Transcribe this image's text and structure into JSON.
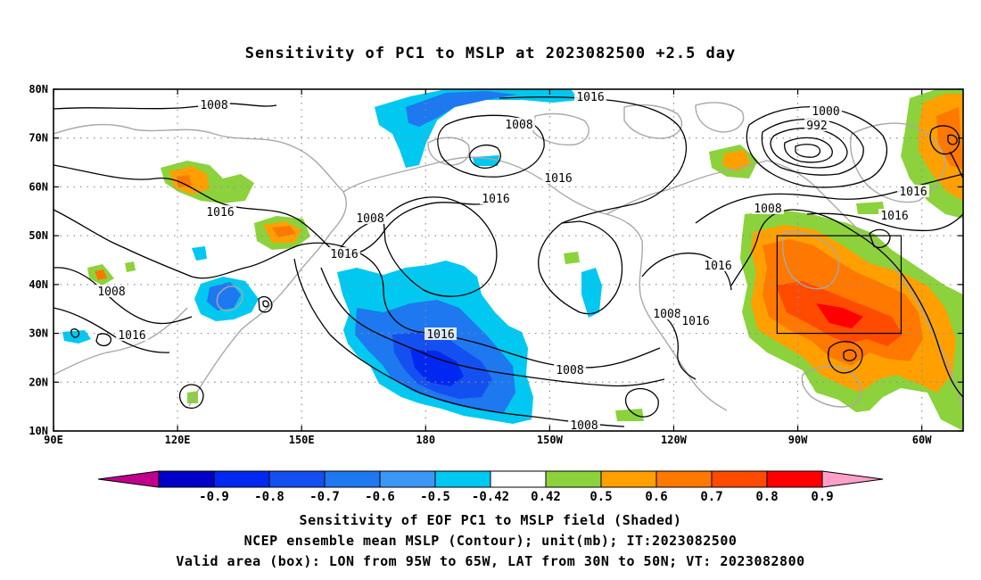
{
  "title": "Sensitivity of PC1 to MSLP at 2023082500 +2.5 day",
  "captions": [
    "Sensitivity of EOF PC1 to MSLP field (Shaded)",
    "NCEP ensemble mean MSLP (Contour); unit(mb); IT:2023082500",
    "Valid area (box): LON from 95W to 65W, LAT from 30N to 50N; VT: 2023082800"
  ],
  "map": {
    "lon_range": [
      90,
      310
    ],
    "lat_range": [
      10,
      80
    ],
    "lon_ticks": [
      "90E",
      "120E",
      "150E",
      "180",
      "150W",
      "120W",
      "90W",
      "60W"
    ],
    "lat_ticks": [
      "10N",
      "20N",
      "30N",
      "40N",
      "50N",
      "60N",
      "70N",
      "80N"
    ],
    "grid": true,
    "valid_box": {
      "lon_min": "95W",
      "lon_max": "65W",
      "lat_min": "30N",
      "lat_max": "50N"
    }
  },
  "contour_labels": [
    "1008",
    "1016",
    "1008",
    "1016",
    "1008",
    "1016",
    "1016",
    "1008",
    "1016",
    "1016",
    "1008",
    "1016",
    "1000",
    "992",
    "1016",
    "1008",
    "1016",
    "1016",
    "1008",
    "1016",
    "1008"
  ],
  "colorbar": {
    "labels": [
      "-0.9",
      "-0.8",
      "-0.7",
      "-0.6",
      "-0.5",
      "-0.42",
      "0.42",
      "0.5",
      "0.6",
      "0.7",
      "0.8",
      "0.9"
    ],
    "colors": [
      "#c0008c",
      "#0000c8",
      "#0028f0",
      "#1450f0",
      "#1e78f0",
      "#3c96f5",
      "#00c8f0",
      "#ffffff",
      "#8cd23c",
      "#ffa000",
      "#ff7800",
      "#ff4b00",
      "#ff0000",
      "#ffa0c8"
    ]
  }
}
